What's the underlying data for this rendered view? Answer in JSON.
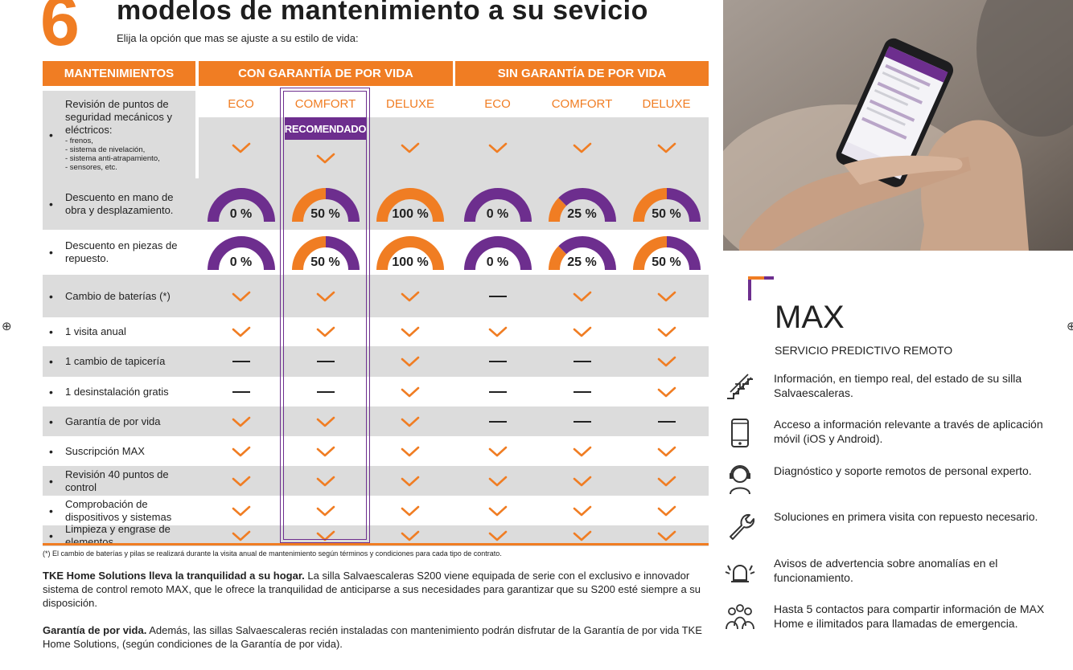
{
  "header": {
    "number": "6",
    "title": "modelos de mantenimiento a su sevicio",
    "subtitle": "Elija la opción que mas se ajuste a su estilo de vida:"
  },
  "table": {
    "col_maintenance": "MANTENIMIENTOS",
    "group_with": "CON GARANTÍA DE POR VIDA",
    "group_without": "SIN GARANTÍA DE POR VIDA",
    "plans": [
      "ECO",
      "COMFORT",
      "DELUXE",
      "ECO",
      "COMFORT",
      "DELUXE"
    ],
    "recommended": "RECOMENDADO",
    "rows": [
      {
        "label": "Revisión de puntos de seguridad mecánicos y eléctricos:",
        "sub": [
          "- frenos,",
          "- sistema de nivelación,",
          "- sistema anti-atrapamiento,",
          "- sensores, etc."
        ],
        "values": [
          "check",
          "check",
          "check",
          "check",
          "check",
          "check"
        ]
      },
      {
        "label": "Descuento en mano de obra y desplazamiento.",
        "gauge_fraction": [
          0,
          0.5,
          1,
          0,
          0.25,
          0.5
        ],
        "values": [
          "0 %",
          "50 %",
          "100 %",
          "0 %",
          "25 %",
          "50 %"
        ]
      },
      {
        "label": "Descuento en piezas de repuesto.",
        "gauge_fraction": [
          0,
          0.5,
          1,
          0,
          0.25,
          0.5
        ],
        "values": [
          "0 %",
          "50 %",
          "100 %",
          "0 %",
          "25 %",
          "50 %"
        ]
      },
      {
        "label": "Cambio de baterías (*)",
        "values": [
          "check",
          "check",
          "check",
          "dash",
          "check",
          "check"
        ]
      },
      {
        "label": "1 visita anual",
        "values": [
          "check",
          "check",
          "check",
          "check",
          "check",
          "check"
        ]
      },
      {
        "label": "1 cambio de tapicería",
        "values": [
          "dash",
          "dash",
          "check",
          "dash",
          "dash",
          "check"
        ]
      },
      {
        "label": "1 desinstalación gratis",
        "values": [
          "dash",
          "dash",
          "check",
          "dash",
          "dash",
          "check"
        ]
      },
      {
        "label": "Garantía de por vida",
        "values": [
          "check",
          "check",
          "check",
          "dash",
          "dash",
          "dash"
        ]
      },
      {
        "label": "Suscripción MAX",
        "values": [
          "check",
          "check",
          "check",
          "check",
          "check",
          "check"
        ]
      },
      {
        "label": "Revisión 40 puntos de control",
        "values": [
          "check",
          "check",
          "check",
          "check",
          "check",
          "check"
        ]
      },
      {
        "label": "Comprobación de dispositivos y sistemas",
        "values": [
          "check",
          "check",
          "check",
          "check",
          "check",
          "check"
        ]
      },
      {
        "label": "Limpieza y engrase de elementos",
        "values": [
          "check",
          "check",
          "check",
          "check",
          "check",
          "check"
        ]
      }
    ]
  },
  "footnote": "(*) El cambio de baterías y pilas se realizará durante la visita anual de mantenimiento según términos y condiciones para cada tipo de contrato.",
  "para1": {
    "bold": "TKE Home Solutions lleva la tranquilidad a su hogar.",
    "text": " La silla Salvaescaleras S200 viene equipada  de serie con el exclusivo e innovador sistema de control remoto MAX, que le ofrece la tranquilidad de anticiparse a sus necesidades para garantizar que su S200 esté siempre a su disposición."
  },
  "para2": {
    "bold": "Garantía de por vida.",
    "text": " Además, las sillas Salvaescaleras recién instaladas con mantenimiento podrán disfrutar de la Garantía de por vida TKE Home Solutions, (según condiciones de la Garantía de por vida)."
  },
  "max": {
    "title": "MAX",
    "subtitle": "SERVICIO PREDICTIVO REMOTO",
    "features": [
      {
        "icon": "stairlift-icon",
        "text": "Información, en tiempo real, del estado de su silla Salvaescaleras."
      },
      {
        "icon": "smartphone-icon",
        "text": "Acceso a información relevante a través de aplicación móvil (iOS y Android)."
      },
      {
        "icon": "support-agent-icon",
        "text": "Diagnóstico y soporte remotos de personal experto."
      },
      {
        "icon": "wrench-icon",
        "text": "Soluciones en primera visita con repuesto necesario."
      },
      {
        "icon": "alarm-bell-icon",
        "text": "Avisos de advertencia sobre anomalías en el funcionamiento."
      },
      {
        "icon": "contacts-icon",
        "text": "Hasta 5 contactos para compartir información de MAX Home e ilimitados para llamadas de emergencia."
      }
    ]
  },
  "colors": {
    "orange": "#f07d23",
    "purple": "#6d2e8e",
    "gray_row": "#dcdcdc"
  }
}
